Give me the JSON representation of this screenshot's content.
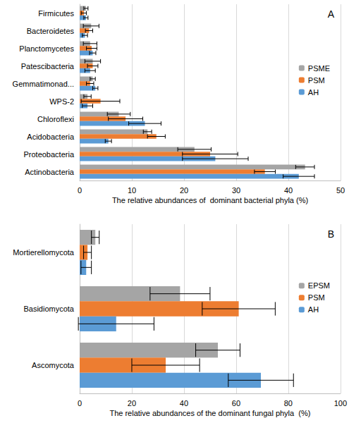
{
  "chart_data": [
    {
      "type": "bar",
      "title": "A",
      "orientation": "horizontal",
      "grid": true,
      "legend": "right",
      "xlabel": "The relative abundances of  dominant bacterial phyla (%)",
      "xlim": [
        0,
        50
      ],
      "xticks": [
        0,
        10,
        20,
        30,
        40,
        50
      ],
      "categories": [
        "Actinobacteria",
        "Proteobacteria",
        "Acidobacteria",
        "Chloroflexi",
        "WPS-2",
        "Gemmatimonad...",
        "Patescibacteria",
        "Planctomycetes",
        "Bacteroidetes",
        "Firmicutes"
      ],
      "series": [
        {
          "name": "PSME",
          "color": "#a5a5a5",
          "values": [
            43.2,
            22.0,
            13.0,
            7.5,
            1.5,
            2.5,
            2.5,
            2.0,
            2.2,
            1.2
          ],
          "errors": [
            1.8,
            3.2,
            0.8,
            2.2,
            0.7,
            0.5,
            1.5,
            1.3,
            1.5,
            0.4
          ]
        },
        {
          "name": "PSM",
          "color": "#ed7d31",
          "values": [
            35.5,
            25.0,
            14.7,
            8.8,
            4.0,
            2.0,
            2.5,
            2.3,
            1.8,
            0.8
          ],
          "errors": [
            2.0,
            5.3,
            1.7,
            3.3,
            3.7,
            0.7,
            1.0,
            1.0,
            0.7,
            0.5
          ]
        },
        {
          "name": "AH",
          "color": "#5b9bd5",
          "values": [
            42.0,
            26.0,
            5.5,
            12.5,
            1.5,
            3.0,
            2.0,
            2.5,
            1.0,
            1.2
          ],
          "errors": [
            3.0,
            6.3,
            0.6,
            3.1,
            1.0,
            0.5,
            1.0,
            0.6,
            0.5,
            0.4
          ]
        }
      ]
    },
    {
      "type": "bar",
      "title": "B",
      "orientation": "horizontal",
      "grid": true,
      "legend": "right",
      "xlabel": "The relative abundances of the dominant fungal phyla  (%)",
      "xlim": [
        0,
        100
      ],
      "xticks": [
        0,
        20,
        40,
        60,
        80,
        100
      ],
      "categories": [
        "Ascomycota",
        "Basidiomycota",
        "Mortierellomycota"
      ],
      "series": [
        {
          "name": "EPSM",
          "color": "#a5a5a5",
          "values": [
            53.0,
            38.5,
            6.0
          ],
          "errors": [
            8.5,
            11.5,
            1.5
          ]
        },
        {
          "name": "PSM",
          "color": "#ed7d31",
          "values": [
            33.0,
            61.0,
            3.0
          ],
          "errors": [
            13.0,
            14.0,
            1.5
          ]
        },
        {
          "name": "AH",
          "color": "#5b9bd5",
          "values": [
            69.5,
            14.0,
            2.5
          ],
          "errors": [
            12.5,
            14.5,
            2.0
          ]
        }
      ]
    }
  ]
}
